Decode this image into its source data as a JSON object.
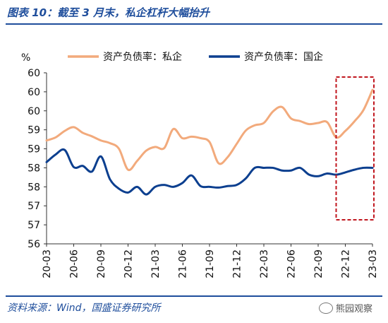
{
  "title": "图表 10：截至 3 月末，私企杠杆大幅抬升",
  "source": "资料来源：Wind，国盛证券研究所",
  "watermark": "熊园观察",
  "colors": {
    "private": "#f2aa7c",
    "state": "#0c3f8f",
    "highlight": "#c0161e",
    "brand": "#1f4e9c"
  },
  "chart_data": {
    "type": "line",
    "ylabel": "%",
    "ylim": [
      56,
      60.5
    ],
    "yticks": [
      56,
      56.5,
      57,
      57.5,
      58,
      58.5,
      59,
      59.5,
      60,
      60.5
    ],
    "ytick_labels": [
      "56",
      "57",
      "57",
      "58",
      "58",
      "59",
      "59",
      "60",
      "60",
      "60"
    ],
    "xtick_labels": [
      "20-03",
      "20-06",
      "20-09",
      "20-12",
      "21-03",
      "21-06",
      "21-09",
      "21-12",
      "22-03",
      "22-06",
      "22-09",
      "22-12",
      "23-03"
    ],
    "legend_position": "top",
    "series": [
      {
        "name": "资产负债率：私企",
        "x": [
          "20-03",
          "20-04",
          "20-05",
          "20-06",
          "20-07",
          "20-08",
          "20-09",
          "20-10",
          "20-11",
          "20-12",
          "21-01",
          "21-02",
          "21-03",
          "21-04",
          "21-05",
          "21-06",
          "21-07",
          "21-08",
          "21-09",
          "21-10",
          "21-11",
          "21-12",
          "22-01",
          "22-02",
          "22-03",
          "22-04",
          "22-05",
          "22-06",
          "22-07",
          "22-08",
          "22-09",
          "22-10",
          "22-11",
          "22-12",
          "23-01",
          "23-02",
          "23-03"
        ],
        "values": [
          58.72,
          58.8,
          58.97,
          59.07,
          58.92,
          58.83,
          58.72,
          58.65,
          58.5,
          57.95,
          58.18,
          58.45,
          58.55,
          58.52,
          59.02,
          58.78,
          58.82,
          58.78,
          58.68,
          58.12,
          58.28,
          58.63,
          58.98,
          59.12,
          59.18,
          59.48,
          59.6,
          59.3,
          59.23,
          59.15,
          59.18,
          59.2,
          58.8,
          58.97,
          59.22,
          59.52,
          60.05
        ]
      },
      {
        "name": "资产负债率：国企",
        "x": [
          "20-03",
          "20-04",
          "20-05",
          "20-06",
          "20-07",
          "20-08",
          "20-09",
          "20-10",
          "20-11",
          "20-12",
          "21-01",
          "21-02",
          "21-03",
          "21-04",
          "21-05",
          "21-06",
          "21-07",
          "21-08",
          "21-09",
          "21-10",
          "21-11",
          "21-12",
          "22-01",
          "22-02",
          "22-03",
          "22-04",
          "22-05",
          "22-06",
          "22-07",
          "22-08",
          "22-09",
          "22-10",
          "22-11",
          "22-12",
          "23-01",
          "23-02",
          "23-03"
        ],
        "values": [
          58.15,
          58.35,
          58.47,
          58.02,
          58.05,
          57.9,
          58.3,
          57.7,
          57.45,
          57.35,
          57.5,
          57.3,
          57.5,
          57.55,
          57.5,
          57.6,
          57.8,
          57.52,
          57.5,
          57.48,
          57.52,
          57.55,
          57.72,
          58.0,
          58.0,
          58.0,
          57.93,
          57.93,
          58.0,
          57.82,
          57.78,
          57.85,
          57.82,
          57.88,
          57.95,
          58.0,
          58.0
        ]
      }
    ],
    "highlight_range": [
      "22-12",
      "23-03"
    ]
  }
}
